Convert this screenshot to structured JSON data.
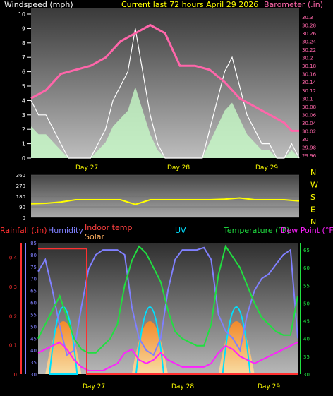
{
  "title": "Current last 72 hours April 29 2026",
  "colors": {
    "windspeed": "#ffffff",
    "gust_fill": "#c8ffc8",
    "barometer": "#ff66aa",
    "winddir": "#ffff00",
    "rain": "#ff3030",
    "humidity": "#8080ff",
    "indoor": "#ff4040",
    "solar": "#ffb060",
    "uv": "#00e0ff",
    "temperature": "#20e040",
    "dewpoint": "#ff20ff"
  },
  "day_labels": [
    "Day 27",
    "Day 28",
    "Day 29"
  ],
  "panel1": {
    "left_label": "Windspeed (mph)",
    "right_label": "Barometer (.in)",
    "left_ticks": [
      "0",
      "1",
      "2",
      "3",
      "4",
      "5",
      "6",
      "7",
      "8",
      "9",
      "10"
    ],
    "right_ticks": [
      "29.96",
      "29.98",
      "30",
      "30.02",
      "30.04",
      "30.06",
      "30.08",
      "30.1",
      "30.12",
      "30.14",
      "30.16",
      "30.18",
      "30.2",
      "30.22",
      "30.24",
      "30.26",
      "30.28",
      "30.3"
    ]
  },
  "panel2": {
    "ticks": [
      "0",
      "90",
      "180",
      "270",
      "360"
    ],
    "compass": [
      "N",
      "W",
      "S",
      "E",
      "N"
    ]
  },
  "panel3": {
    "labels": {
      "rain": "Rainfall (.in)",
      "humidity": "Humidity",
      "indoor": "Indoor temp",
      "solar": "Solar",
      "uv": "UV",
      "temperature": "Temperature (°F)",
      "dewpoint": "Dew Point (°F)"
    },
    "rain_ticks": [
      "0",
      "0.1",
      "0.2",
      "0.3",
      "0.4"
    ],
    "humidity_ticks": [
      "30",
      "35",
      "40",
      "45",
      "50",
      "55",
      "60",
      "65",
      "70",
      "75",
      "80",
      "85"
    ],
    "temp_ticks": [
      "30",
      "35",
      "40",
      "45",
      "50",
      "55",
      "60",
      "65"
    ]
  },
  "chart_data": [
    {
      "type": "line",
      "title": "Current last 72 hours April 29 2026",
      "ylabel": "Windspeed (mph)",
      "y2label": "Barometer (.in)",
      "x_labels": [
        "Day 27",
        "Day 28",
        "Day 29"
      ],
      "ylim": [
        0,
        10
      ],
      "y2lim": [
        29.96,
        30.3
      ],
      "series": [
        {
          "name": "Barometer (.in)",
          "axis": "right",
          "x_hours": [
            0,
            4,
            8,
            12,
            16,
            20,
            24,
            28,
            32,
            36,
            40,
            44,
            48,
            52,
            56,
            60,
            64,
            66,
            68,
            70,
            72
          ],
          "values": [
            30.1,
            30.12,
            30.16,
            30.17,
            30.18,
            30.2,
            30.24,
            30.26,
            30.28,
            30.26,
            30.18,
            30.18,
            30.17,
            30.14,
            30.1,
            30.08,
            30.06,
            30.05,
            30.04,
            30.02,
            30.02
          ]
        },
        {
          "name": "Windspeed (mph)",
          "axis": "left",
          "x_hours": [
            0,
            2,
            4,
            6,
            8,
            10,
            12,
            14,
            16,
            18,
            20,
            22,
            24,
            26,
            28,
            30,
            32,
            34,
            36,
            38,
            40,
            42,
            44,
            46,
            48,
            50,
            52,
            54,
            56,
            58,
            60,
            62,
            64,
            66,
            68,
            70,
            72
          ],
          "values": [
            4,
            3,
            3,
            2,
            1,
            0,
            0,
            0,
            0,
            1,
            2,
            4,
            5,
            6,
            9,
            6,
            3,
            1,
            0,
            0,
            0,
            0,
            0,
            0,
            2,
            4,
            6,
            7,
            5,
            3,
            2,
            1,
            1,
            0,
            0,
            1,
            0
          ]
        }
      ]
    },
    {
      "type": "line",
      "ylim": [
        0,
        360
      ],
      "x_labels": [
        "Day 27",
        "Day 28",
        "Day 29"
      ],
      "series": [
        {
          "x_hours": [
            0,
            4,
            8,
            12,
            16,
            20,
            24,
            28,
            32,
            36,
            40,
            44,
            48,
            52,
            56,
            60,
            64,
            68,
            72
          ],
          "values": [
            115,
            120,
            130,
            150,
            150,
            150,
            150,
            110,
            150,
            150,
            150,
            150,
            150,
            155,
            165,
            150,
            150,
            150,
            140
          ]
        }
      ]
    },
    {
      "type": "line",
      "x_labels": [
        "Day 27",
        "Day 28",
        "Day 29"
      ],
      "ylim_rain": [
        0,
        0.45
      ],
      "ylim_humidity": [
        30,
        85
      ],
      "ylim_temperature": [
        30,
        67
      ],
      "series": [
        {
          "name": "Humidity",
          "axis": "humidity",
          "x_hours": [
            0,
            2,
            4,
            6,
            8,
            10,
            12,
            14,
            16,
            18,
            20,
            22,
            24,
            26,
            28,
            30,
            32,
            34,
            36,
            38,
            40,
            42,
            44,
            46,
            48,
            50,
            52,
            54,
            56,
            58,
            60,
            62,
            64,
            66,
            68,
            70,
            72
          ],
          "values": [
            73,
            78,
            65,
            50,
            38,
            40,
            58,
            74,
            80,
            82,
            82,
            82,
            80,
            58,
            45,
            40,
            38,
            45,
            65,
            78,
            82,
            82,
            82,
            83,
            78,
            55,
            48,
            45,
            40,
            55,
            65,
            70,
            72,
            76,
            80,
            82,
            45
          ]
        },
        {
          "name": "Temperature (°F)",
          "axis": "temperature",
          "x_hours": [
            0,
            2,
            4,
            6,
            8,
            10,
            12,
            14,
            16,
            18,
            20,
            22,
            24,
            26,
            28,
            30,
            32,
            34,
            36,
            38,
            40,
            42,
            44,
            46,
            48,
            50,
            52,
            54,
            56,
            58,
            60,
            62,
            64,
            66,
            68,
            70,
            72
          ],
          "values": [
            40,
            44,
            48,
            52,
            46,
            40,
            37,
            36,
            36,
            38,
            40,
            44,
            55,
            62,
            66,
            64,
            60,
            56,
            48,
            42,
            40,
            39,
            38,
            38,
            44,
            58,
            66,
            63,
            60,
            55,
            50,
            46,
            44,
            42,
            41,
            41,
            52
          ]
        },
        {
          "name": "Dew Point (°F)",
          "axis": "temperature",
          "x_hours": [
            0,
            2,
            4,
            6,
            8,
            10,
            12,
            14,
            16,
            18,
            20,
            22,
            24,
            26,
            28,
            30,
            32,
            34,
            36,
            38,
            40,
            42,
            44,
            46,
            48,
            50,
            52,
            54,
            56,
            58,
            60,
            62,
            64,
            66,
            68,
            70,
            72
          ],
          "values": [
            36,
            37,
            38,
            39,
            37,
            34,
            32,
            31,
            31,
            31,
            32,
            33,
            36,
            37,
            34,
            33,
            34,
            36,
            34,
            33,
            32,
            32,
            32,
            32,
            33,
            36,
            38,
            37,
            35,
            34,
            33,
            34,
            35,
            36,
            37,
            38,
            39
          ]
        },
        {
          "name": "Rainfall (.in)",
          "axis": "rain",
          "x_hours": [
            0,
            13.5,
            13.5,
            72
          ],
          "values": [
            0.43,
            0.43,
            0,
            0
          ]
        }
      ]
    }
  ]
}
